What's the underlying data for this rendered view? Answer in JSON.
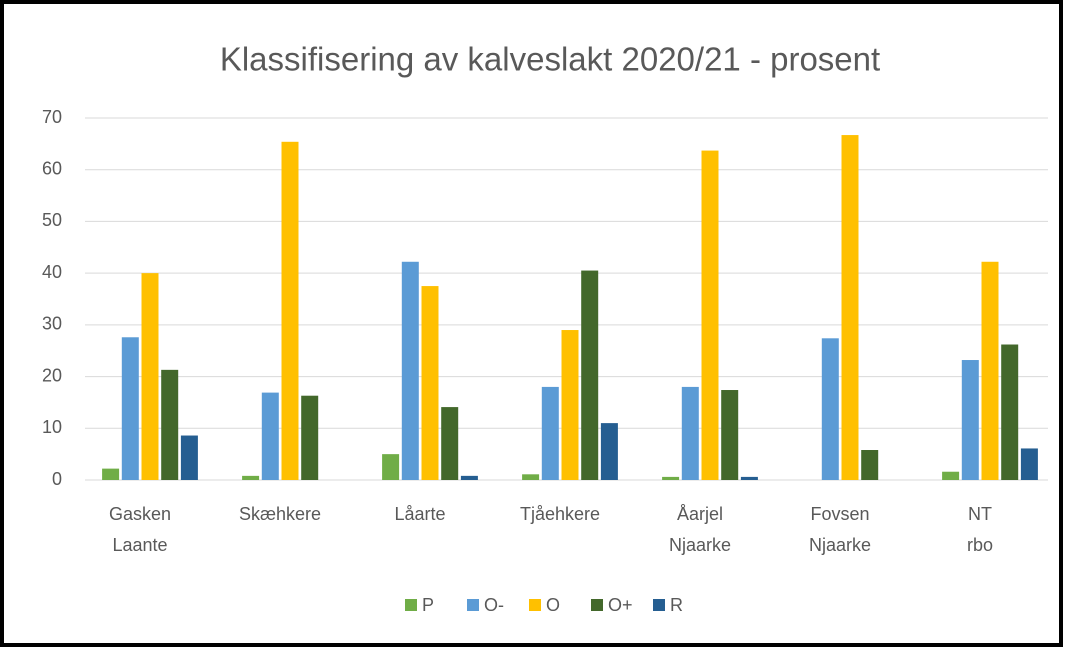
{
  "chart_data": {
    "type": "bar",
    "title": "Klassifisering av kalveslakt 2020/21 - prosent",
    "categories": [
      "Gasken Laante",
      "Skæhkere",
      "Låarte",
      "Tjåehkere",
      "Åarjel Njaarke",
      "Fovsen Njaarke",
      "NT rbo"
    ],
    "series": [
      {
        "name": "P",
        "color": "#70ad47",
        "values": [
          2.2,
          0.8,
          5.0,
          1.1,
          0.6,
          0,
          1.6
        ]
      },
      {
        "name": "O-",
        "color": "#5b9bd5",
        "values": [
          27.6,
          16.9,
          42.2,
          18.0,
          18.0,
          27.4,
          23.2
        ]
      },
      {
        "name": "O",
        "color": "#ffc000",
        "values": [
          40.0,
          65.4,
          37.5,
          29.0,
          63.7,
          66.7,
          42.2
        ]
      },
      {
        "name": "O+",
        "color": "#43682b",
        "values": [
          21.3,
          16.3,
          14.1,
          40.5,
          17.4,
          5.8,
          26.2
        ]
      },
      {
        "name": "R",
        "color": "#255e91",
        "values": [
          8.6,
          0,
          0.8,
          11.0,
          0.6,
          0,
          6.1
        ]
      }
    ],
    "ylim": [
      0,
      70
    ],
    "yticks": [
      0,
      10,
      20,
      30,
      40,
      50,
      60,
      70
    ],
    "grid": true,
    "legend": "bottom"
  }
}
